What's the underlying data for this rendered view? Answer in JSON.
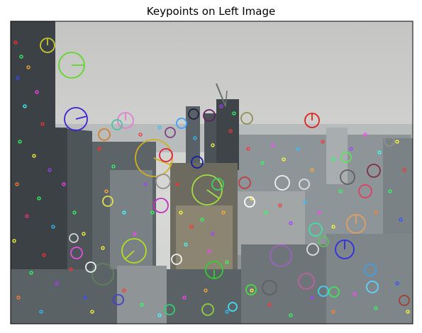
{
  "figure": {
    "title": "Keypoints on Left Image"
  },
  "colors": {
    "sky": "#c8c9c6",
    "sky_light": "#dedfdc",
    "building_dark": "#3f4549",
    "building_mid": "#6f767a",
    "building_light": "#9aa0a3",
    "axes_border": "#000000"
  }
}
